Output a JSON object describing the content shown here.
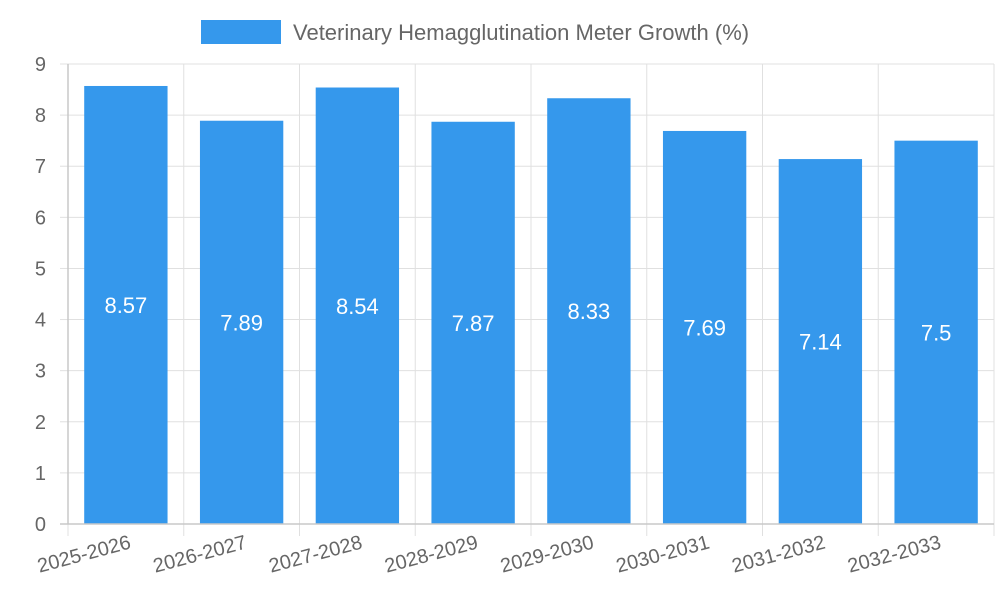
{
  "chart_data": {
    "type": "bar",
    "title": "",
    "xlabel": "",
    "ylabel": "",
    "categories": [
      "2025-2026",
      "2026-2027",
      "2027-2028",
      "2028-2029",
      "2029-2030",
      "2030-2031",
      "2031-2032",
      "2032-2033"
    ],
    "series": [
      {
        "name": "Veterinary Hemagglutination Meter Growth (%)",
        "values": [
          8.57,
          7.89,
          8.54,
          7.87,
          8.33,
          7.69,
          7.14,
          7.5
        ],
        "color": "#3598ec"
      }
    ],
    "data_labels": [
      "8.57",
      "7.89",
      "8.54",
      "7.87",
      "8.33",
      "7.69",
      "7.14",
      "7.5"
    ],
    "ylim": [
      0,
      9
    ],
    "yticks": [
      "0",
      "1",
      "2",
      "3",
      "4",
      "5",
      "6",
      "7",
      "8",
      "9"
    ],
    "legend_position": "top-center",
    "grid": true
  }
}
